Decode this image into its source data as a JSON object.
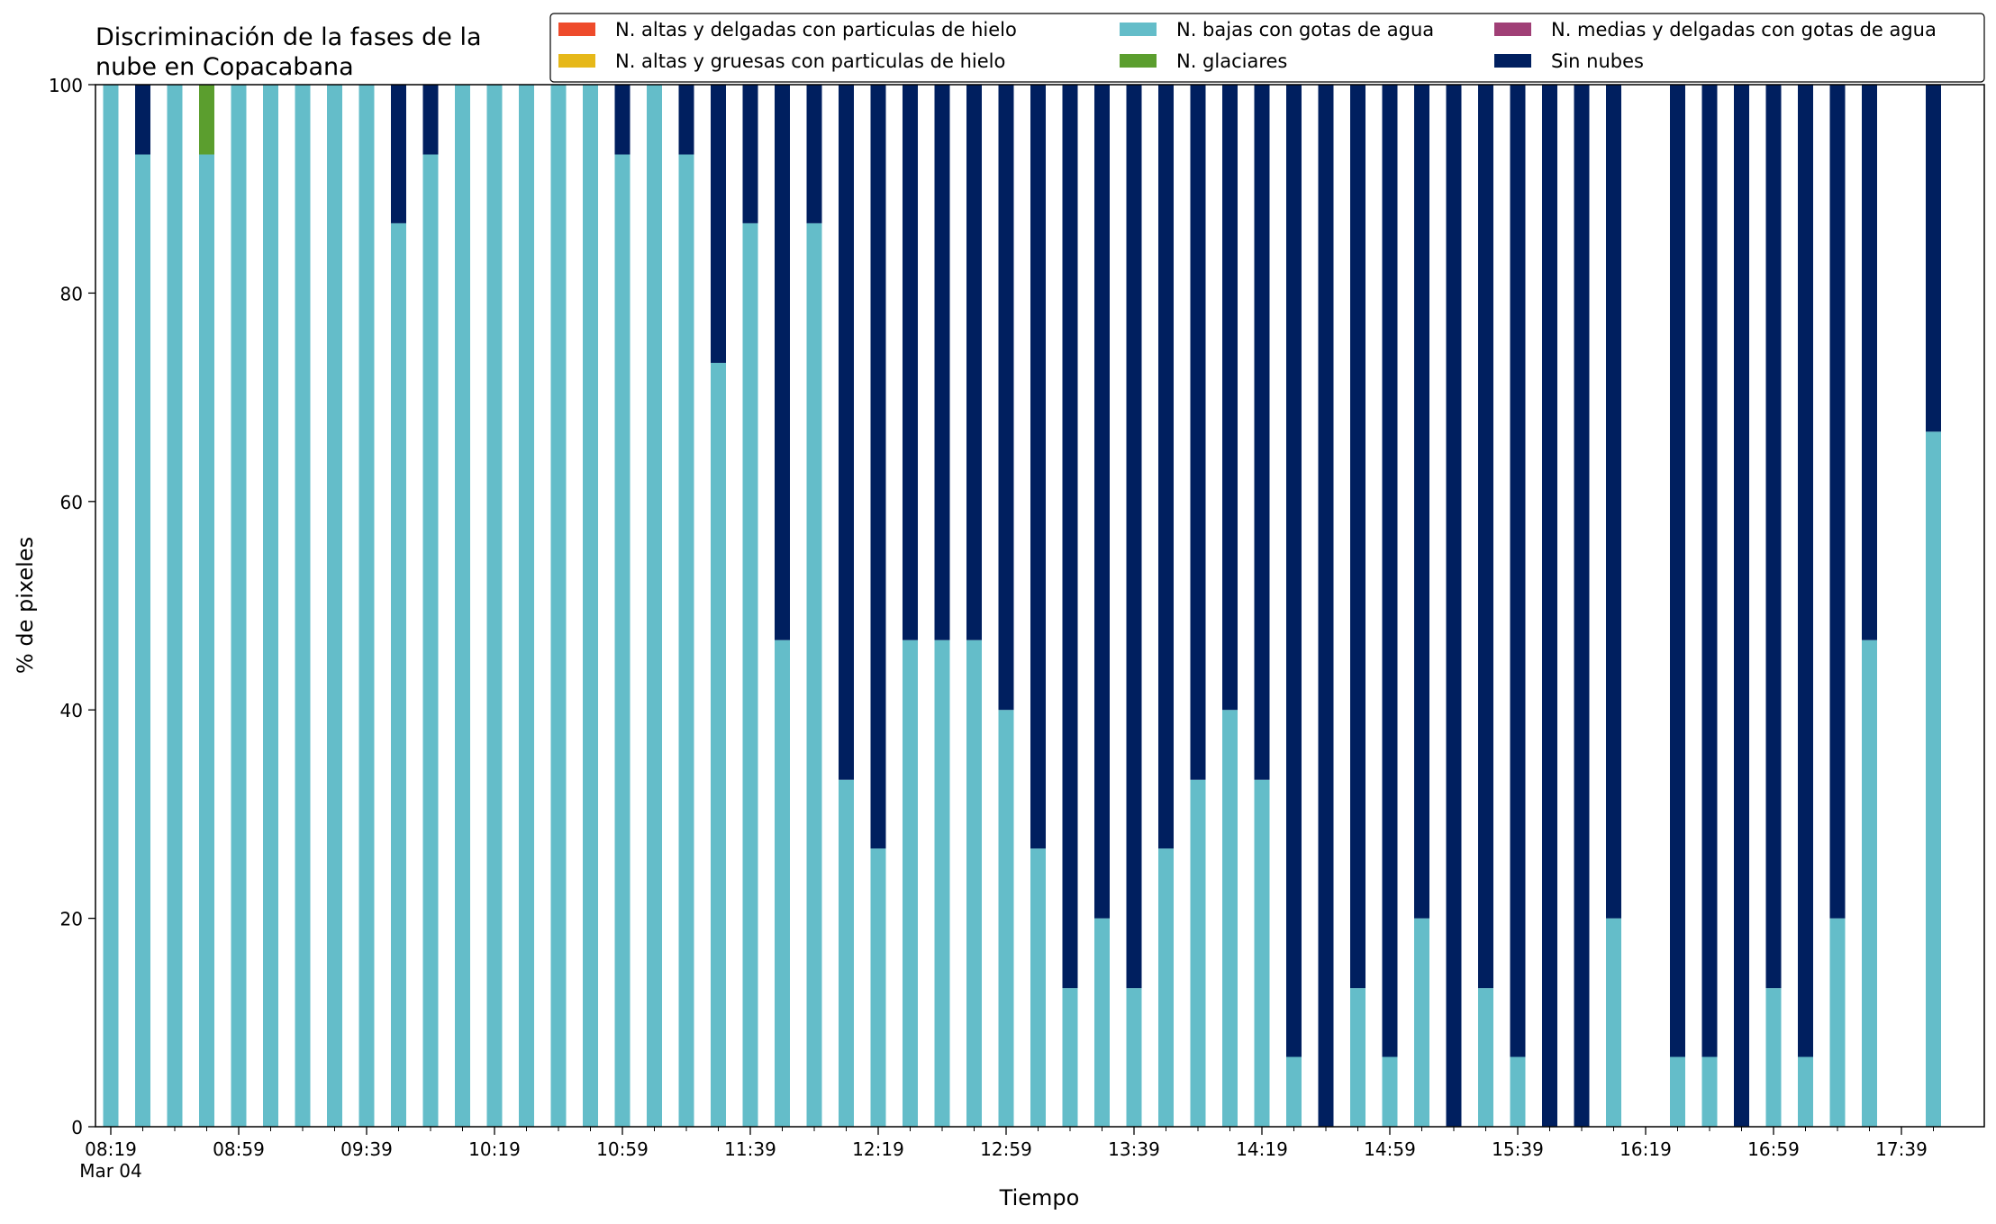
{
  "chart_data": {
    "type": "bar",
    "stacked": true,
    "title_lines": [
      "Discriminación de la fases de la",
      "nube en Copacabana"
    ],
    "xlabel": "Tiempo",
    "ylabel": "% de pixeles",
    "ylim": [
      0,
      100
    ],
    "yticks": [
      0,
      20,
      40,
      60,
      80,
      100
    ],
    "grid": false,
    "legend_position": "top-right",
    "x_start": "08:19",
    "x_interval_minutes": 10,
    "x_tick_labels": [
      "08:19",
      "08:59",
      "09:39",
      "10:19",
      "10:59",
      "11:39",
      "12:19",
      "12:59",
      "13:39",
      "14:19",
      "14:59",
      "15:39",
      "16:19",
      "16:59",
      "17:39"
    ],
    "x_date_label": "Mar 04",
    "categories": [
      "08:19",
      "08:29",
      "08:39",
      "08:49",
      "08:59",
      "09:09",
      "09:19",
      "09:29",
      "09:39",
      "09:49",
      "09:59",
      "10:09",
      "10:19",
      "10:29",
      "10:39",
      "10:49",
      "10:59",
      "11:09",
      "11:19",
      "11:29",
      "11:39",
      "11:49",
      "11:59",
      "12:09",
      "12:19",
      "12:29",
      "12:39",
      "12:49",
      "12:59",
      "13:09",
      "13:19",
      "13:29",
      "13:39",
      "13:49",
      "13:59",
      "14:09",
      "14:19",
      "14:29",
      "14:39",
      "14:49",
      "14:59",
      "15:09",
      "15:19",
      "15:29",
      "15:39",
      "15:49",
      "15:59",
      "16:09",
      "16:19",
      "16:29",
      "16:39",
      "16:49",
      "16:59",
      "17:09",
      "17:19",
      "17:29",
      "17:39",
      "17:49"
    ],
    "series": [
      {
        "name": "N. altas y delgadas con particulas de hielo",
        "color": "#ee4b2b",
        "values": [
          0,
          0,
          0,
          0,
          0,
          0,
          0,
          0,
          0,
          0,
          0,
          0,
          0,
          0,
          0,
          0,
          0,
          0,
          0,
          0,
          0,
          0,
          0,
          0,
          0,
          0,
          0,
          0,
          0,
          0,
          0,
          0,
          0,
          0,
          0,
          0,
          0,
          0,
          0,
          0,
          0,
          0,
          0,
          0,
          0,
          0,
          0,
          0,
          0,
          0,
          0,
          0,
          0,
          0,
          0,
          0,
          0,
          0
        ]
      },
      {
        "name": "N. altas y gruesas con particulas de hielo",
        "color": "#e6b819",
        "values": [
          0,
          0,
          0,
          0,
          0,
          0,
          0,
          0,
          0,
          0,
          0,
          0,
          0,
          0,
          0,
          0,
          0,
          0,
          0,
          0,
          0,
          0,
          0,
          0,
          0,
          0,
          0,
          0,
          0,
          0,
          0,
          0,
          0,
          0,
          0,
          0,
          0,
          0,
          0,
          0,
          0,
          0,
          0,
          0,
          0,
          0,
          0,
          0,
          0,
          0,
          0,
          0,
          0,
          0,
          0,
          0,
          0,
          0
        ]
      },
      {
        "name": "N. bajas con gotas de agua",
        "color": "#64bdc9",
        "values": [
          100,
          93.3,
          100,
          93.3,
          100,
          100,
          100,
          100,
          100,
          86.7,
          93.3,
          100,
          100,
          100,
          100,
          100,
          93.3,
          100,
          93.3,
          73.3,
          86.7,
          46.7,
          86.7,
          33.3,
          26.7,
          46.7,
          46.7,
          46.7,
          40,
          26.7,
          13.3,
          20,
          13.3,
          26.7,
          33.3,
          40,
          33.3,
          6.7,
          0,
          13.3,
          6.7,
          20,
          0,
          13.3,
          6.7,
          0,
          0,
          20,
          0,
          6.7,
          6.7,
          0,
          13.3,
          6.7,
          20,
          46.7,
          0,
          66.7
        ]
      },
      {
        "name": "N. glaciares",
        "color": "#5b9e2e",
        "values": [
          0,
          0,
          0,
          6.7,
          0,
          0,
          0,
          0,
          0,
          0,
          0,
          0,
          0,
          0,
          0,
          0,
          0,
          0,
          0,
          0,
          0,
          0,
          0,
          0,
          0,
          0,
          0,
          0,
          0,
          0,
          0,
          0,
          0,
          0,
          0,
          0,
          0,
          0,
          0,
          0,
          0,
          0,
          0,
          0,
          0,
          0,
          0,
          0,
          0,
          0,
          0,
          0,
          0,
          0,
          0,
          0,
          0,
          0
        ]
      },
      {
        "name": "N. medias y delgadas con gotas de agua",
        "color": "#a03f76",
        "values": [
          0,
          0,
          0,
          0,
          0,
          0,
          0,
          0,
          0,
          0,
          0,
          0,
          0,
          0,
          0,
          0,
          0,
          0,
          0,
          0,
          0,
          0,
          0,
          0,
          0,
          0,
          0,
          0,
          0,
          0,
          0,
          0,
          0,
          0,
          0,
          0,
          0,
          0,
          0,
          0,
          0,
          0,
          0,
          0,
          0,
          0,
          0,
          0,
          0,
          0,
          0,
          0,
          0,
          0,
          0,
          0,
          0,
          0
        ]
      },
      {
        "name": "Sin nubes",
        "color": "#001f5f",
        "values": [
          0,
          6.7,
          0,
          0,
          0,
          0,
          0,
          0,
          0,
          13.3,
          6.7,
          0,
          0,
          0,
          0,
          0,
          6.7,
          0,
          6.7,
          26.7,
          13.3,
          53.3,
          13.3,
          66.7,
          73.3,
          53.3,
          53.3,
          53.3,
          60,
          73.3,
          86.7,
          80,
          86.7,
          73.3,
          66.7,
          60,
          66.7,
          93.3,
          100,
          86.7,
          93.3,
          80,
          100,
          86.7,
          93.3,
          100,
          100,
          80,
          0,
          93.3,
          93.3,
          100,
          86.7,
          93.3,
          80,
          53.3,
          0,
          33.3
        ]
      }
    ]
  }
}
